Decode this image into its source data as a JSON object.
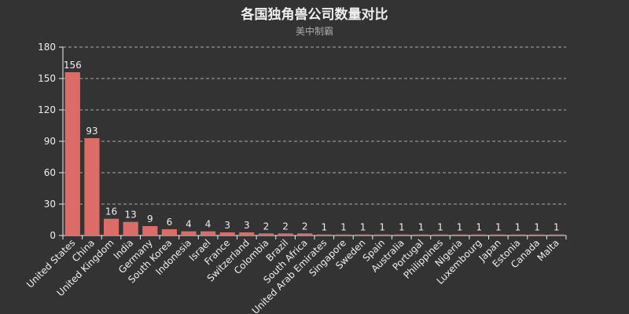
{
  "chart_data": {
    "type": "bar",
    "title": "各国独角兽公司数量对比",
    "subtitle": "美中制霸",
    "categories": [
      "United States",
      "China",
      "United Kingdom",
      "India",
      "Germany",
      "South Korea",
      "Indonesia",
      "Israel",
      "France",
      "Switzerland",
      "Colombia",
      "Brazil",
      "South Africa",
      "United Arab Emirates",
      "Singapore",
      "Sweden",
      "Spain",
      "Australia",
      "Portugal",
      "Philippines",
      "Nigeria",
      "Luxembourg",
      "Japan",
      "Estonia",
      "Canada",
      "Malta"
    ],
    "values": [
      156,
      93,
      16,
      13,
      9,
      6,
      4,
      4,
      3,
      3,
      2,
      2,
      2,
      1,
      1,
      1,
      1,
      1,
      1,
      1,
      1,
      1,
      1,
      1,
      1,
      1
    ],
    "ylim": [
      0,
      180
    ],
    "yticks": [
      0,
      30,
      60,
      90,
      120,
      150,
      180
    ],
    "grid": true,
    "colors": {
      "bar": "#dd6b66",
      "background": "#333333",
      "text": "#eeeeee",
      "subtext": "#aaaaaa",
      "grid": "#aaaaaa",
      "axis": "#eeeeee"
    }
  }
}
